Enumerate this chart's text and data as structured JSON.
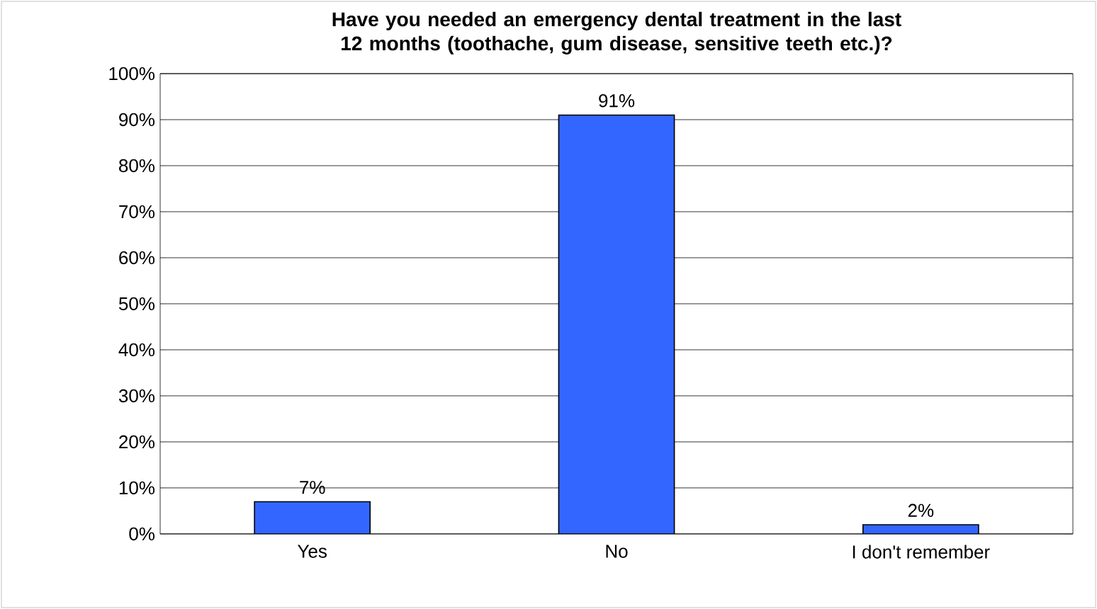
{
  "chart_data": {
    "type": "bar",
    "title": "**Have you needed an emergency dental treatment in the last 12 months (toothache, gum disease, sensitive teeth etc.)?**",
    "categories": [
      "Yes",
      "No",
      "I don't remember"
    ],
    "values": [
      7,
      91,
      2
    ],
    "value_labels": [
      "7%",
      "91%",
      "2%"
    ],
    "color": "#3366ff",
    "ylim": [
      0,
      100
    ],
    "yticks": [
      {
        "value": 0,
        "label": "0%"
      },
      {
        "value": 10,
        "label": "10%"
      },
      {
        "value": 20,
        "label": "20%"
      },
      {
        "value": 30,
        "label": "30%"
      },
      {
        "value": 40,
        "label": "40%"
      },
      {
        "value": 50,
        "label": "50%"
      },
      {
        "value": 60,
        "label": "60%"
      },
      {
        "value": 70,
        "label": "70%"
      },
      {
        "value": 80,
        "label": "80%"
      },
      {
        "value": 90,
        "label": "90%"
      },
      {
        "value": 100,
        "label": "100%"
      }
    ],
    "grid": "y"
  }
}
